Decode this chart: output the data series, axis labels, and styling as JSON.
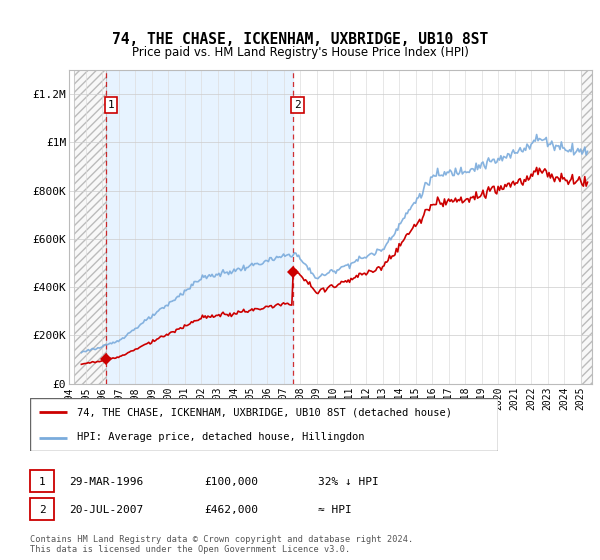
{
  "title": "74, THE CHASE, ICKENHAM, UXBRIDGE, UB10 8ST",
  "subtitle": "Price paid vs. HM Land Registry's House Price Index (HPI)",
  "legend_line1": "74, THE CHASE, ICKENHAM, UXBRIDGE, UB10 8ST (detached house)",
  "legend_line2": "HPI: Average price, detached house, Hillingdon",
  "footnote": "Contains HM Land Registry data © Crown copyright and database right 2024.\nThis data is licensed under the Open Government Licence v3.0.",
  "sale1_year": 1996.23,
  "sale1_price": 100000,
  "sale2_year": 2007.55,
  "sale2_price": 462000,
  "hpi_color": "#7aabdc",
  "price_color": "#cc0000",
  "dashed_line_color": "#cc0000",
  "ylim_max": 1300000,
  "xlim_min": 1994.3,
  "xlim_max": 2025.7
}
